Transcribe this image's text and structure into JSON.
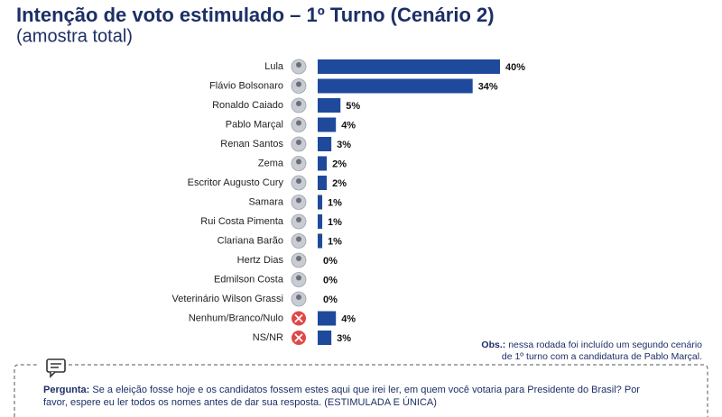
{
  "chart_data": {
    "type": "bar",
    "orientation": "horizontal",
    "title": "Intenção de voto estimulado – 1º Turno (Cenário 2)",
    "subtitle": "(amostra total)",
    "categories": [
      "Lula",
      "Flávio Bolsonaro",
      "Ronaldo Caiado",
      "Pablo Marçal",
      "Renan Santos",
      "Zema",
      "Escritor Augusto Cury",
      "Samara",
      "Rui Costa Pimenta",
      "Clariana Barão",
      "Hertz Dias",
      "Edmilson Costa",
      "Veterinário Wilson Grassi",
      "Nenhum/Branco/Nulo",
      "NS/NR"
    ],
    "values": [
      40,
      34,
      5,
      4,
      3,
      2,
      2,
      1,
      1,
      1,
      0,
      0,
      0,
      4,
      3
    ],
    "value_labels": [
      "40%",
      "34%",
      "5%",
      "4%",
      "3%",
      "2%",
      "2%",
      "1%",
      "1%",
      "1%",
      "0%",
      "0%",
      "0%",
      "4%",
      "3%"
    ],
    "color": "#1f4a9c"
  },
  "note": {
    "label": "Obs.:",
    "lines": [
      "nessa rodada foi incluído um segundo cenário",
      "de 1º turno com a candidatura de Pablo Marçal."
    ]
  },
  "question": {
    "label": "Pergunta:",
    "lines": [
      "Se a eleição fosse hoje e os candidatos fossem estes aqui que irei ler, em quem você votaria para Presidente do Brasil? Por",
      "favor, espere eu ler todos os nomes antes de dar sua resposta. (ESTIMULADA E ÚNICA)"
    ]
  }
}
